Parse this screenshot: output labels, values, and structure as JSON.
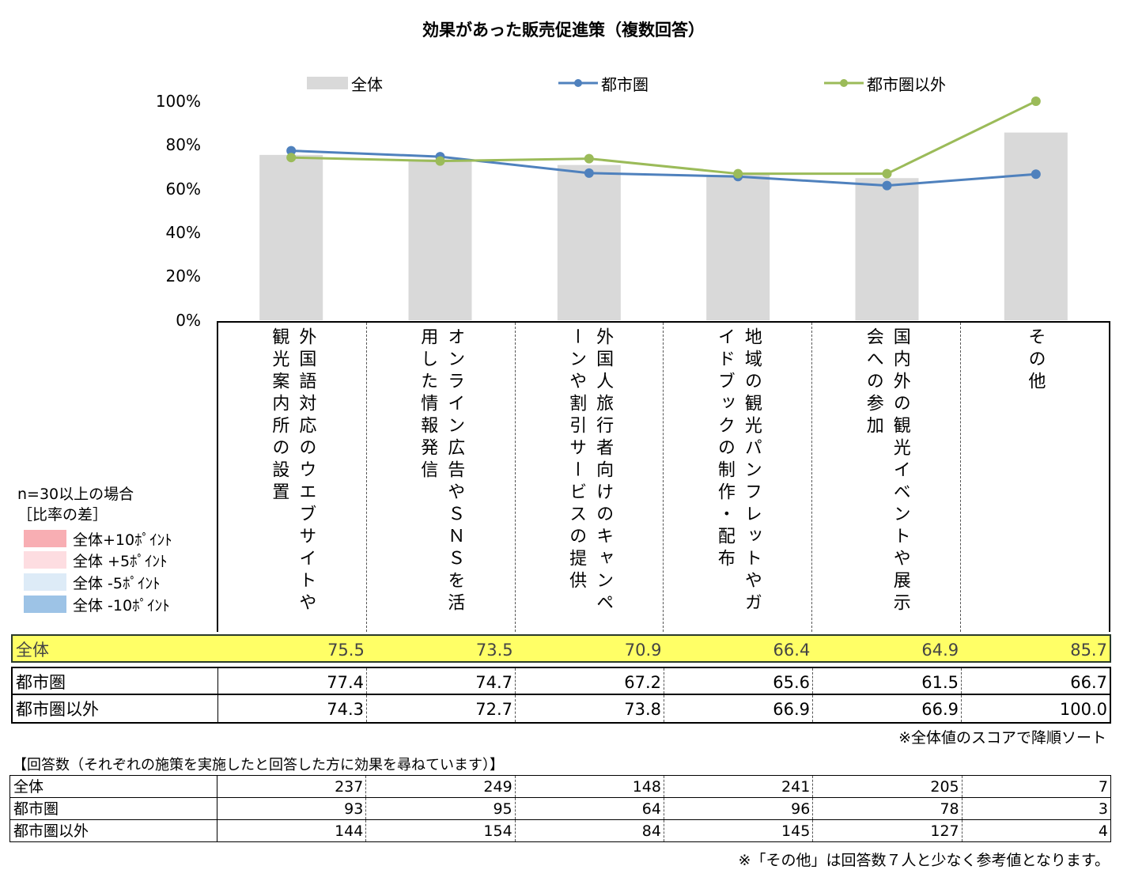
{
  "title": "効果があった販売促進策（複数回答）",
  "legend": {
    "all": "全体",
    "metro": "都市圏",
    "other": "都市圏以外"
  },
  "colors": {
    "bar": "#d9d9d9",
    "metro": "#4f81bd",
    "other": "#9bbb59",
    "highlight": "#ffff66",
    "plus10": "#f8aeb3",
    "plus5": "#fddde1",
    "minus5": "#ddebf7",
    "minus10": "#9dc3e6"
  },
  "chart_data": {
    "type": "bar",
    "categories": [
      "外国語対応のウエブサイトや観光案内所の設置",
      "オンライン広告やＳＮＳを活用した情報発信",
      "外国人旅行者向けのキャンペーンや割引サービスの提供",
      "地域の観光パンフレットやガイドブックの制作・配布",
      "国内外の観光イベントや展示会への参加",
      "その他"
    ],
    "series": [
      {
        "name": "全体",
        "kind": "bar",
        "values": [
          75.5,
          73.5,
          70.9,
          66.4,
          64.9,
          85.7
        ]
      },
      {
        "name": "都市圏",
        "kind": "line",
        "values": [
          77.4,
          74.7,
          67.2,
          65.6,
          61.5,
          66.7
        ]
      },
      {
        "name": "都市圏以外",
        "kind": "line",
        "values": [
          74.3,
          72.7,
          73.8,
          66.9,
          66.9,
          100.0
        ]
      }
    ],
    "yticks": [
      "100%",
      "80%",
      "60%",
      "40%",
      "20%",
      "0%"
    ],
    "ylim": [
      0,
      100
    ],
    "legend_position": "top"
  },
  "category_labels": [
    "外国語対応のウエブサイトや観光案内所の設置",
    "オンライン広告やＳＮＳを活用した情報発信",
    "外国人旅行者向けのキャンペーンや割引サービスの提供",
    "地域の観光パンフレットやガイドブックの制作・配布",
    "国内外の観光イベントや展示会への参加",
    "その他"
  ],
  "table": {
    "rows": [
      {
        "label": "全体",
        "values": [
          "75.5",
          "73.5",
          "70.9",
          "66.4",
          "64.9",
          "85.7"
        ]
      },
      {
        "label": "都市圏",
        "values": [
          "77.4",
          "74.7",
          "67.2",
          "65.6",
          "61.5",
          "66.7"
        ]
      },
      {
        "label": "都市圏以外",
        "values": [
          "74.3",
          "72.7",
          "73.8",
          "66.9",
          "66.9",
          "100.0"
        ]
      }
    ],
    "sort_note": "※全体値のスコアで降順ソート"
  },
  "color_legend": {
    "n_note": "n=30以上の場合",
    "header": "［比率の差］",
    "items": [
      {
        "label": "全体+10ﾎﾟｲﾝﾄ"
      },
      {
        "label": "全体 +5ﾎﾟｲﾝﾄ"
      },
      {
        "label": "全体 -5ﾎﾟｲﾝﾄ"
      },
      {
        "label": "全体 -10ﾎﾟｲﾝﾄ"
      }
    ]
  },
  "responses": {
    "title": "【回答数（それぞれの施策を実施したと回答した方に効果を尋ねています）】",
    "rows": [
      {
        "label": "全体",
        "values": [
          "237",
          "249",
          "148",
          "241",
          "205",
          "7"
        ]
      },
      {
        "label": "都市圏",
        "values": [
          "93",
          "95",
          "64",
          "96",
          "78",
          "3"
        ]
      },
      {
        "label": "都市圏以外",
        "values": [
          "144",
          "154",
          "84",
          "145",
          "127",
          "4"
        ]
      }
    ],
    "note": "※「その他」は回答数７人と少なく参考値となります。"
  }
}
